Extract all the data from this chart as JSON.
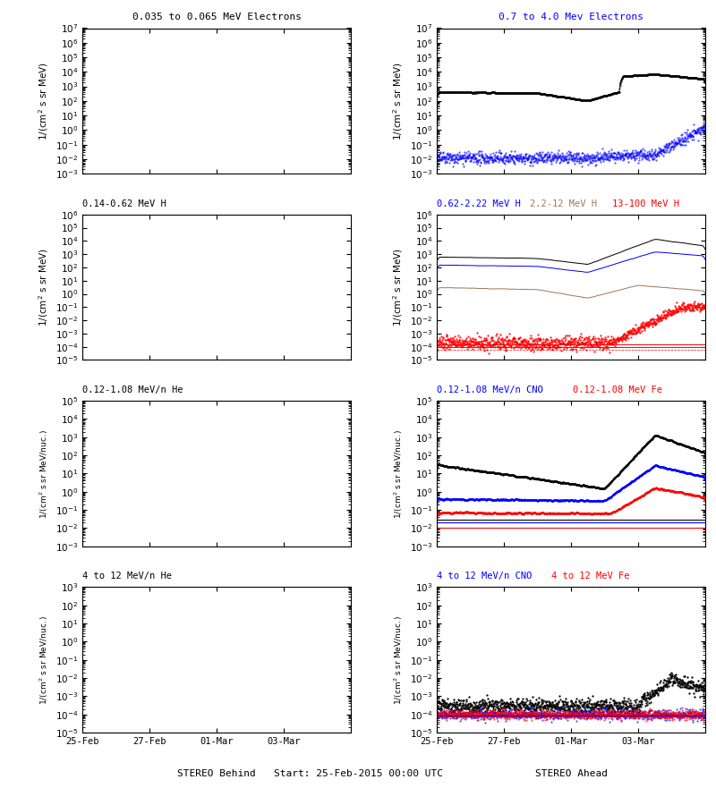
{
  "title_row1_left_text": "0.035 to 0.065 MeV Electrons",
  "title_row1_left_color": "#000000",
  "title_row1_right_text": "0.7 to 4.0 Mev Electrons",
  "title_row1_right_color": "#0000FF",
  "title_row2_t1_text": "0.14-0.62 MeV H",
  "title_row2_t1_color": "#000000",
  "title_row2_t2_text": "0.62-2.22 MeV H",
  "title_row2_t2_color": "#0000FF",
  "title_row2_t3_text": "2.2-12 MeV H",
  "title_row2_t3_color": "#A0785A",
  "title_row2_t4_text": "13-100 MeV H",
  "title_row2_t4_color": "#FF0000",
  "title_row3_t1_text": "0.12-1.08 MeV/n He",
  "title_row3_t1_color": "#000000",
  "title_row3_t2_text": "0.12-1.08 MeV/n CNO",
  "title_row3_t2_color": "#0000FF",
  "title_row3_t3_text": "0.12-1.08 MeV Fe",
  "title_row3_t3_color": "#FF0000",
  "title_row4_t1_text": "4 to 12 MeV/n He",
  "title_row4_t1_color": "#000000",
  "title_row4_t2_text": "4 to 12 MeV/n CNO",
  "title_row4_t2_color": "#0000FF",
  "title_row4_t3_text": "4 to 12 MeV Fe",
  "title_row4_t3_color": "#FF0000",
  "xlabel_left": "STEREO Behind",
  "xlabel_center": "Start: 25-Feb-2015 00:00 UTC",
  "xlabel_right": "STEREO Ahead",
  "xtick_labels": [
    "25-Feb",
    "27-Feb",
    "01-Mar",
    "03-Mar"
  ],
  "ylim_row1": [
    0.001,
    10000000.0
  ],
  "ylim_row2": [
    1e-05,
    1000000.0
  ],
  "ylim_row3": [
    0.001,
    100000.0
  ],
  "ylim_row4": [
    1e-05,
    1000.0
  ],
  "ylabel_mev": "1/(cm² s sr MeV)",
  "ylabel_nuc": "1/(cm² s sr MeV/nuc.)",
  "color_black": "#000000",
  "color_blue": "#0000FF",
  "color_brown": "#A0785A",
  "color_red": "#FF0000",
  "bg_color": "#FFFFFF",
  "seed": 42
}
